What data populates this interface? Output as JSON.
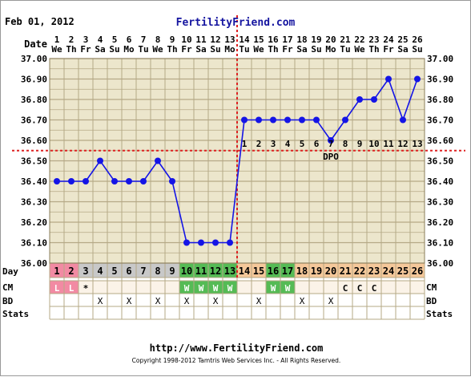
{
  "header": {
    "date": "Feb 01, 2012",
    "site_title": "FertilityFriend.com"
  },
  "footer": {
    "url": "http://www.FertilityFriend.com",
    "copyright": "Copyright 1998-2012 Tamtris Web Services Inc. - All Rights Reserved."
  },
  "colors": {
    "plot_bg": "#ece6cc",
    "grid": "#b5a986",
    "line": "#1414e6",
    "coverline": "#dd2222",
    "menses": "#f28aa3",
    "fertile": "#55bb55",
    "follicular": "#c8c8c8",
    "luteal": "#f5c89a",
    "site_blue": "#1515a0"
  },
  "chart_data": {
    "type": "line",
    "row_labels": {
      "date": "Date",
      "day": "Day",
      "cm": "CM",
      "bd": "BD",
      "stats": "Stats"
    },
    "dates": [
      "1",
      "2",
      "3",
      "4",
      "5",
      "6",
      "7",
      "8",
      "9",
      "10",
      "11",
      "12",
      "13",
      "14",
      "15",
      "16",
      "17",
      "18",
      "19",
      "20",
      "21",
      "22",
      "23",
      "24",
      "25",
      "26"
    ],
    "weekdays": [
      "We",
      "Th",
      "Fr",
      "Sa",
      "Su",
      "Mo",
      "Tu",
      "We",
      "Th",
      "Fr",
      "Sa",
      "Su",
      "Mo",
      "Tu",
      "We",
      "Th",
      "Fr",
      "Sa",
      "Su",
      "Mo",
      "Tu",
      "We",
      "Th",
      "Fr",
      "Sa",
      "Su"
    ],
    "cycle_days": [
      "1",
      "2",
      "3",
      "4",
      "5",
      "6",
      "7",
      "8",
      "9",
      "10",
      "11",
      "12",
      "13",
      "14",
      "15",
      "16",
      "17",
      "18",
      "19",
      "20",
      "21",
      "22",
      "23",
      "24",
      "25",
      "26"
    ],
    "temperatures": [
      36.4,
      36.4,
      36.4,
      36.5,
      36.4,
      36.4,
      36.4,
      36.5,
      36.4,
      36.1,
      36.1,
      36.1,
      36.1,
      36.7,
      36.7,
      36.7,
      36.7,
      36.7,
      36.7,
      36.6,
      36.7,
      36.8,
      36.8,
      36.9,
      36.7,
      36.9
    ],
    "y_ticks": [
      "37.00",
      "36.90",
      "36.80",
      "36.70",
      "36.60",
      "36.50",
      "36.40",
      "36.30",
      "36.20",
      "36.10",
      "36.00"
    ],
    "ylim": [
      36.0,
      37.0
    ],
    "coverline": 36.55,
    "ovulation_day": 13,
    "dpo_label": "DPO",
    "dpo_numbers": [
      "1",
      "2",
      "3",
      "4",
      "5",
      "6",
      "7",
      "8",
      "9",
      "10",
      "11",
      "12",
      "13"
    ],
    "day_phases": [
      "menses",
      "menses",
      "follicular",
      "follicular",
      "follicular",
      "follicular",
      "follicular",
      "follicular",
      "follicular",
      "fertile",
      "fertile",
      "fertile",
      "fertile",
      "luteal",
      "luteal",
      "fertile",
      "fertile",
      "luteal",
      "luteal",
      "luteal",
      "luteal",
      "luteal",
      "luteal",
      "luteal",
      "luteal",
      "luteal"
    ],
    "cm": [
      "L",
      "L",
      "*",
      "",
      "",
      "",
      "",
      "",
      "",
      "W",
      "W",
      "W",
      "W",
      "",
      "",
      "W",
      "W",
      "",
      "",
      "",
      "C",
      "C",
      "C",
      "",
      "",
      ""
    ],
    "bd": [
      "",
      "",
      "",
      "X",
      "",
      "X",
      "",
      "X",
      "",
      "X",
      "",
      "X",
      "",
      "",
      "X",
      "",
      "",
      "X",
      "",
      "X",
      "",
      "",
      "",
      "",
      "",
      ""
    ],
    "grid": true
  }
}
